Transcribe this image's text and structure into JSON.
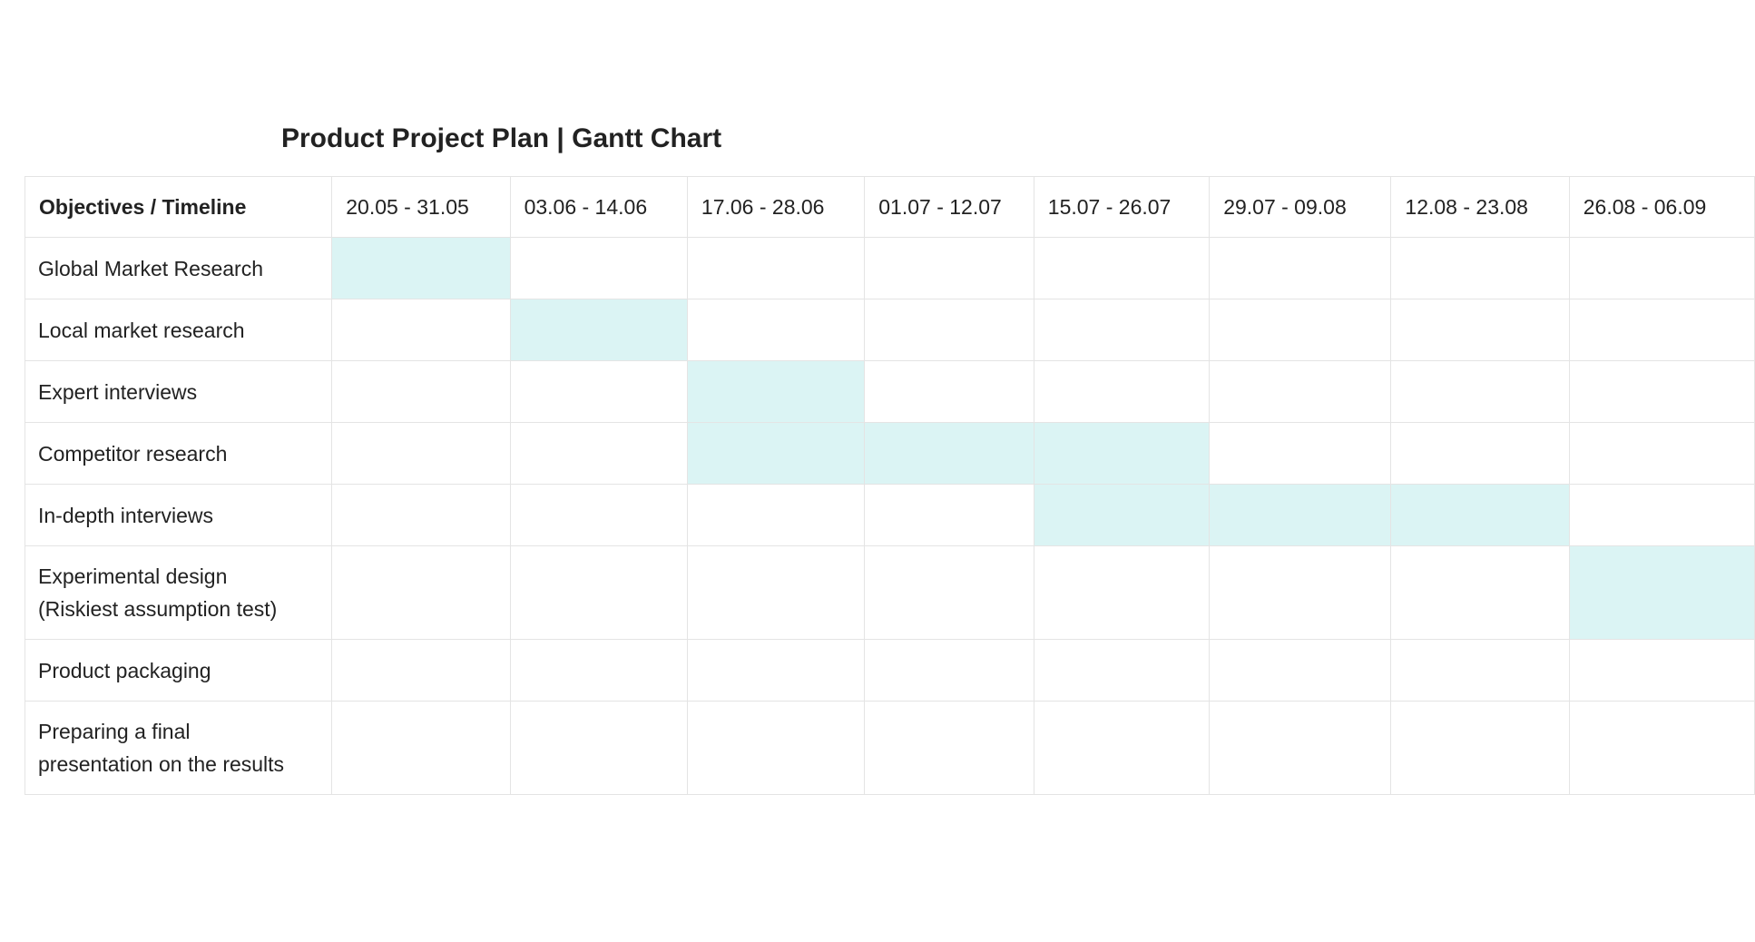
{
  "chart_data": {
    "type": "table",
    "title": "Product Project Plan | Gantt Chart",
    "header_label": "Objectives / Timeline",
    "periods": [
      "20.05 - 31.05",
      "03.06 - 14.06",
      "17.06 - 28.06",
      "01.07 - 12.07",
      "15.07 - 26.07",
      "29.07 - 09.08",
      "12.08 - 23.08",
      "26.08 - 06.09"
    ],
    "tasks": [
      {
        "name": "Global Market Research",
        "active": [
          0
        ]
      },
      {
        "name": "Local market research",
        "active": [
          1
        ]
      },
      {
        "name": "Expert interviews",
        "active": [
          2
        ]
      },
      {
        "name": "Competitor research",
        "active": [
          2,
          3,
          4
        ]
      },
      {
        "name": "In-depth interviews",
        "active": [
          4,
          5,
          6
        ]
      },
      {
        "name": "Experimental design\n(Riskiest assumption test)",
        "active": [
          7
        ]
      },
      {
        "name": "Product packaging",
        "active": []
      },
      {
        "name": "Preparing a final\npresentation on the results",
        "active": []
      }
    ],
    "bar_color": "#dbf4f4"
  }
}
